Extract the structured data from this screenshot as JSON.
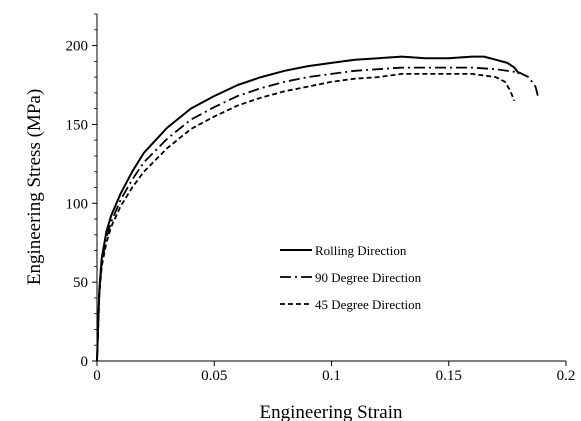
{
  "chart_data": {
    "type": "line",
    "title": "",
    "xlabel": "Engineering Strain",
    "ylabel": "Engineering Stress (MPa)",
    "xlim": [
      0,
      0.2
    ],
    "ylim": [
      0,
      220
    ],
    "xticks": [
      0,
      0.05,
      0.1,
      0.15,
      0.2
    ],
    "xtick_labels": [
      "0",
      "0.05",
      "0.1",
      "0.15",
      "0.2"
    ],
    "yticks": [
      0,
      50,
      100,
      150,
      200
    ],
    "ytick_labels": [
      "0",
      "50",
      "100",
      "150",
      "200"
    ],
    "grid": false,
    "legend_position": "lower-right",
    "series": [
      {
        "name": "Rolling Direction",
        "line_style": "solid",
        "color": "#000000",
        "x": [
          0,
          0.001,
          0.002,
          0.004,
          0.006,
          0.01,
          0.015,
          0.02,
          0.03,
          0.04,
          0.05,
          0.06,
          0.07,
          0.08,
          0.09,
          0.1,
          0.11,
          0.12,
          0.13,
          0.14,
          0.15,
          0.16,
          0.165,
          0.17,
          0.175,
          0.178,
          0.18
        ],
        "y": [
          0,
          45,
          65,
          82,
          92,
          106,
          120,
          132,
          148,
          160,
          168,
          175,
          180,
          184,
          187,
          189,
          191,
          192,
          193,
          192,
          192,
          193,
          193,
          191,
          189,
          186,
          182
        ]
      },
      {
        "name": "90 Degree Direction",
        "line_style": "dash-dot",
        "color": "#000000",
        "x": [
          0,
          0.001,
          0.002,
          0.004,
          0.006,
          0.01,
          0.015,
          0.02,
          0.03,
          0.04,
          0.05,
          0.06,
          0.07,
          0.08,
          0.09,
          0.1,
          0.11,
          0.12,
          0.13,
          0.14,
          0.15,
          0.16,
          0.17,
          0.18,
          0.184,
          0.187,
          0.188
        ],
        "y": [
          0,
          43,
          62,
          78,
          88,
          102,
          115,
          126,
          141,
          153,
          161,
          168,
          173,
          177,
          180,
          182,
          184,
          185,
          186,
          186,
          186,
          186,
          185,
          183,
          180,
          174,
          168
        ]
      },
      {
        "name": "45 Degree Direction",
        "line_style": "dashed",
        "color": "#000000",
        "x": [
          0,
          0.001,
          0.002,
          0.004,
          0.006,
          0.01,
          0.015,
          0.02,
          0.03,
          0.04,
          0.05,
          0.06,
          0.07,
          0.08,
          0.09,
          0.1,
          0.11,
          0.12,
          0.13,
          0.14,
          0.15,
          0.16,
          0.17,
          0.174,
          0.176,
          0.178
        ],
        "y": [
          0,
          42,
          60,
          75,
          85,
          98,
          110,
          120,
          135,
          147,
          155,
          162,
          167,
          171,
          174,
          177,
          179,
          180,
          182,
          182,
          182,
          182,
          180,
          177,
          172,
          165
        ]
      }
    ]
  }
}
